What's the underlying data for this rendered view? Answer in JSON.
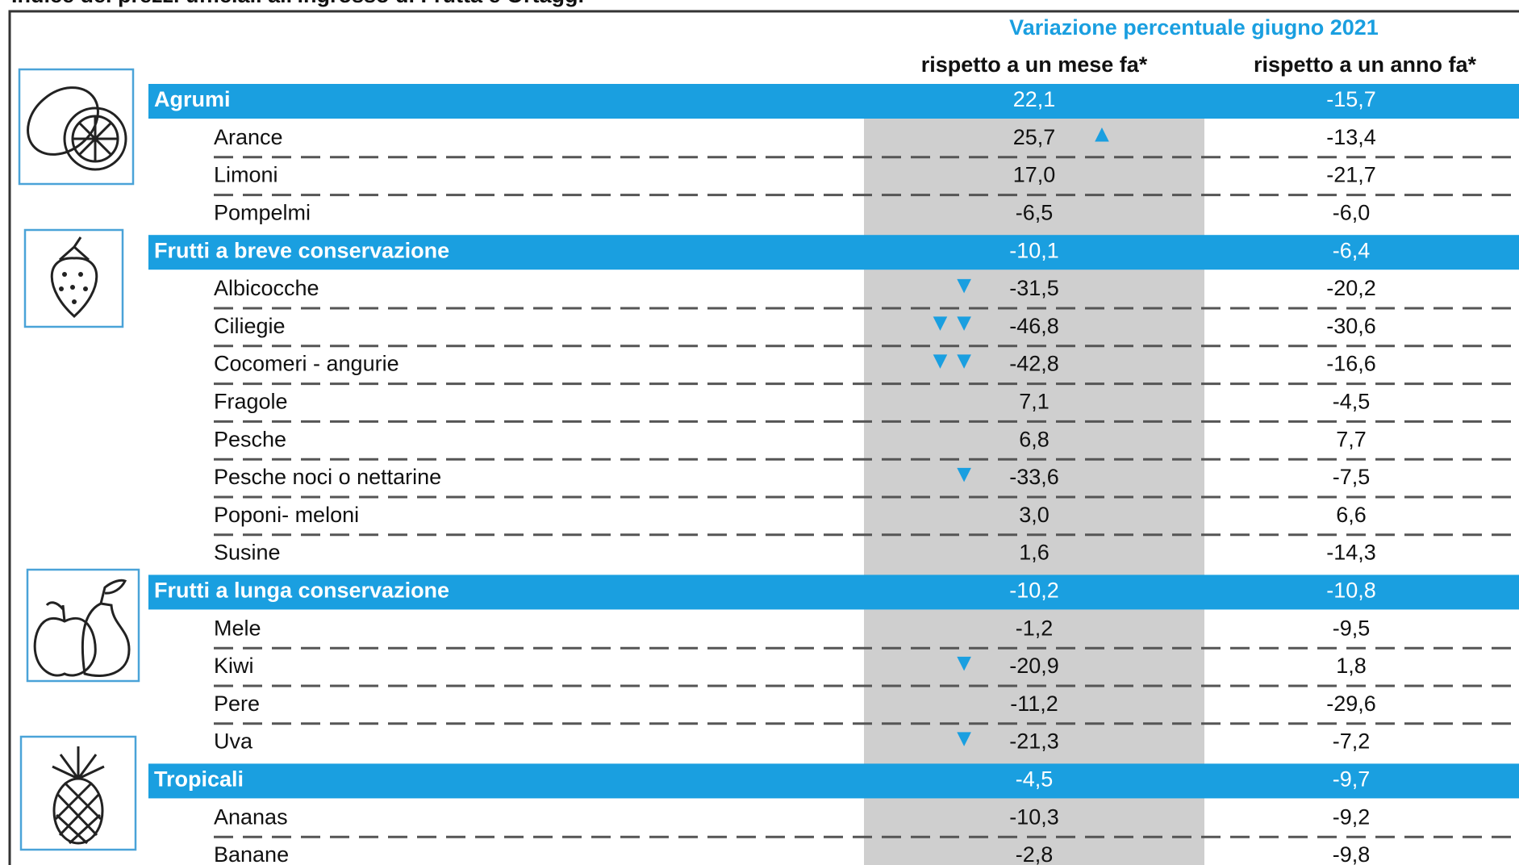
{
  "header": {
    "title": "Indice dei prezzi ufficiali all'ingrosso di Frutta e Ortaggi",
    "group_title": "Variazione percentuale giugno 2021",
    "columns": [
      "rispetto a un mese fa*",
      "rispetto a un anno fa*"
    ]
  },
  "groups": [
    {
      "name": "Agrumi",
      "month": "22,1",
      "year": "-15,7",
      "items": [
        {
          "name": "Arance",
          "month": "25,7",
          "year": "-13,4",
          "mark": "▲"
        },
        {
          "name": "Limoni",
          "month": "17,0",
          "year": "-21,7"
        },
        {
          "name": "Pompelmi",
          "month": "-6,5",
          "year": "-6,0"
        }
      ]
    },
    {
      "name": "Frutti a breve conservazione",
      "month": "-10,1",
      "year": "-6,4",
      "items": [
        {
          "name": "Albicocche",
          "month": "-31,5",
          "year": "-20,2",
          "mark": "▼"
        },
        {
          "name": "Ciliegie",
          "month": "-46,8",
          "year": "-30,6",
          "mark": "▼▼"
        },
        {
          "name": "Cocomeri - angurie",
          "month": "-42,8",
          "year": "-16,6",
          "mark": "▼▼"
        },
        {
          "name": "Fragole",
          "month": "7,1",
          "year": "-4,5"
        },
        {
          "name": "Pesche",
          "month": "6,8",
          "year": "7,7"
        },
        {
          "name": "Pesche noci o nettarine",
          "month": "-33,6",
          "year": "-7,5",
          "mark": "▼"
        },
        {
          "name": "Poponi- meloni",
          "month": "3,0",
          "year": "6,6"
        },
        {
          "name": "Susine",
          "month": "1,6",
          "year": "-14,3"
        }
      ]
    },
    {
      "name": "Frutti a lunga conservazione",
      "month": "-10,2",
      "year": "-10,8",
      "items": [
        {
          "name": "Mele",
          "month": "-1,2",
          "year": "-9,5"
        },
        {
          "name": "Kiwi",
          "month": "-20,9",
          "year": "1,8",
          "mark": "▼"
        },
        {
          "name": "Pere",
          "month": "-11,2",
          "year": "-29,6"
        },
        {
          "name": "Uva",
          "month": "-21,3",
          "year": "-7,2",
          "mark": "▼"
        }
      ]
    },
    {
      "name": "Tropicali",
      "month": "-4,5",
      "year": "-9,7",
      "items": [
        {
          "name": "Ananas",
          "month": "-10,3",
          "year": "-9,2"
        },
        {
          "name": "Banane",
          "month": "-2,8",
          "year": "-9,8"
        }
      ]
    }
  ]
}
